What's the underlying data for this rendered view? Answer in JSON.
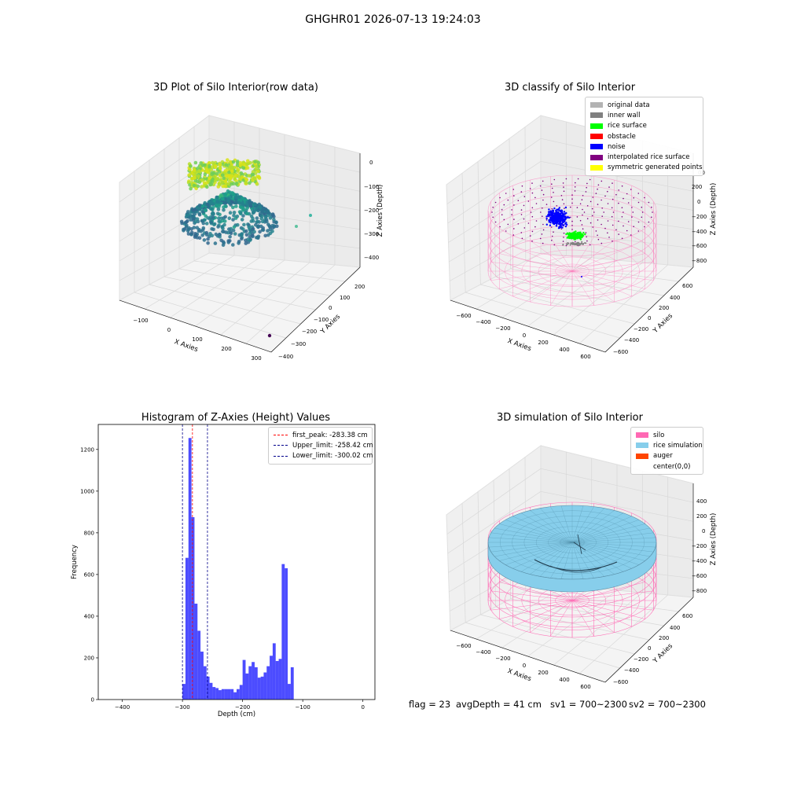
{
  "figure": {
    "suptitle": "GHGHR01 2026-07-13 19:24:03"
  },
  "panel_raw": {
    "title": "3D Plot of Silo Interior(row data)",
    "x_label": "X Axies",
    "y_label": "Y Axies",
    "z_label": "Z Axies (Depth)",
    "x_ticks": [
      "−100",
      "0",
      "100",
      "200",
      "300"
    ],
    "y_ticks": [
      "200",
      "100",
      "0",
      "−100",
      "−200",
      "−300",
      "−400"
    ],
    "z_ticks": [
      "0",
      "−100",
      "−200",
      "−300",
      "−400"
    ]
  },
  "panel_classify": {
    "title": "3D classify of Silo Interior",
    "x_label": "X Axies",
    "y_label": "Y Axies",
    "z_label": "Z Axies (Depth)",
    "x_ticks": [
      "−600",
      "−400",
      "−200",
      "0",
      "200",
      "400",
      "600"
    ],
    "y_ticks": [
      "600",
      "400",
      "200",
      "0",
      "−200",
      "−400",
      "−600"
    ],
    "z_ticks": [
      "200",
      "0",
      "−200",
      "−400",
      "−600",
      "−800"
    ],
    "z_top_tick": "00",
    "legend": [
      {
        "label": "original data",
        "color": "#b3b3b3"
      },
      {
        "label": "inner wall",
        "color": "#808080"
      },
      {
        "label": "rice surface",
        "color": "#00ff00"
      },
      {
        "label": "obstacle",
        "color": "#ff0000"
      },
      {
        "label": "noise",
        "color": "#0000ff"
      },
      {
        "label": "interpolated rice surface",
        "color": "#800080"
      },
      {
        "label": "symmetric generated points",
        "color": "#ffff00"
      }
    ]
  },
  "panel_sim": {
    "title": "3D simulation of Silo Interior",
    "x_label": "X Axies",
    "y_label": "Y Axies",
    "z_label": "Z Axies (Depth)",
    "x_ticks": [
      "−600",
      "−400",
      "−200",
      "0",
      "200",
      "400",
      "600"
    ],
    "y_ticks": [
      "600",
      "400",
      "200",
      "0",
      "−200",
      "−400",
      "−600"
    ],
    "z_ticks": [
      "400",
      "200",
      "0",
      "−200",
      "−400",
      "−600",
      "−800"
    ],
    "legend": [
      {
        "label": "silo",
        "color": "#ff69b4"
      },
      {
        "label": "rice simulation",
        "color": "#87ceeb"
      },
      {
        "label": "auger",
        "color": "#ff4500"
      },
      {
        "label": "center(0,0)",
        "color": ""
      }
    ]
  },
  "footer": {
    "flag": "flag = 23",
    "avg_depth": "avgDepth = 41 cm",
    "sv1": "sv1 = 700~2300",
    "sv2": "sv2 = 700~2300"
  },
  "chart_data": [
    {
      "type": "scatter",
      "title": "3D Plot of Silo Interior(row data)",
      "xlabel": "X Axies",
      "ylabel": "Y Axies",
      "zlabel": "Z Axies (Depth)",
      "xlim": [
        -150,
        330
      ],
      "ylim": [
        -420,
        260
      ],
      "zlim": [
        -430,
        20
      ],
      "colormap": "viridis",
      "grid": true
    },
    {
      "type": "scatter",
      "title": "3D classify of Silo Interior",
      "xlabel": "X Axies",
      "ylabel": "Y Axies",
      "zlabel": "Z Axies (Depth)",
      "xlim": [
        -700,
        700
      ],
      "ylim": [
        -700,
        700
      ],
      "zlim": [
        -900,
        300
      ],
      "legend_position": "top-right",
      "grid": true
    },
    {
      "type": "histogram",
      "title": "Histogram of Z-Axies (Height) Values",
      "xlabel": "Depth (cm)",
      "ylabel": "Frequency",
      "xlim": [
        -440,
        20
      ],
      "ylim": [
        0,
        1320
      ],
      "x_ticks": [
        -400,
        -300,
        -200,
        -100,
        0
      ],
      "y_ticks": [
        0,
        200,
        400,
        600,
        800,
        1000,
        1200
      ],
      "bin_edges_start": -300,
      "bin_width": 5,
      "values": [
        75,
        680,
        1255,
        875,
        460,
        330,
        230,
        160,
        110,
        80,
        60,
        55,
        45,
        50,
        50,
        50,
        50,
        35,
        50,
        70,
        190,
        125,
        160,
        180,
        155,
        105,
        110,
        130,
        160,
        210,
        270,
        185,
        195,
        650,
        630,
        75,
        155
      ],
      "bar_color": "#0000ff",
      "lines": [
        {
          "name": "first_peak: -283.38 cm",
          "x": -283.38,
          "color": "#ff0000"
        },
        {
          "name": "Upper_limit: -258.42 cm",
          "x": -258.42,
          "color": "#00008b"
        },
        {
          "name": "Lower_limit: -300.02 cm",
          "x": -300.02,
          "color": "#00008b"
        }
      ],
      "legend_position": "top-right"
    },
    {
      "type": "surface",
      "title": "3D simulation of Silo Interior",
      "xlabel": "X Axies",
      "ylabel": "Y Axies",
      "zlabel": "Z Axies (Depth)",
      "xlim": [
        -700,
        700
      ],
      "ylim": [
        -700,
        700
      ],
      "zlim": [
        -900,
        500
      ],
      "legend_position": "top-right",
      "grid": true
    }
  ]
}
